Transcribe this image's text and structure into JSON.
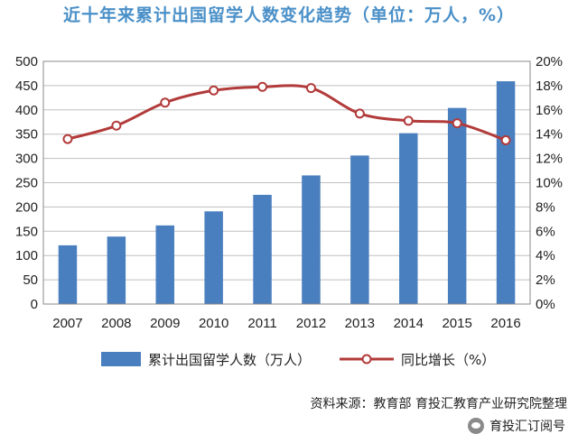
{
  "chart_data": {
    "type": "bar",
    "title": "近十年来累计出国留学人数变化趋势（单位：万人，%）",
    "categories": [
      "2007",
      "2008",
      "2009",
      "2010",
      "2011",
      "2012",
      "2013",
      "2014",
      "2015",
      "2016"
    ],
    "series": [
      {
        "name": "累计出国留学人数（万人）",
        "type": "bar",
        "axis": "left",
        "values": [
          121,
          139,
          162,
          191,
          225,
          265,
          306,
          352,
          404,
          459
        ]
      },
      {
        "name": "同比增长（%）",
        "type": "line",
        "axis": "right",
        "values": [
          13.6,
          14.7,
          16.6,
          17.6,
          17.9,
          17.8,
          15.7,
          15.1,
          14.9,
          13.5
        ]
      }
    ],
    "y_left": {
      "min": 0,
      "max": 500,
      "step": 50
    },
    "y_right": {
      "min": 0,
      "max": 20,
      "step": 2,
      "suffix": "%"
    },
    "grid": true,
    "legend_position": "bottom",
    "colors": {
      "bar": "#4a7fbf",
      "line": "#b23a3a",
      "marker_fill": "#ffffff",
      "title": "#4a90c8"
    }
  },
  "source_note": "资料来源：教育部  育投汇教育产业研究院整理",
  "watermark": "育投汇订阅号"
}
